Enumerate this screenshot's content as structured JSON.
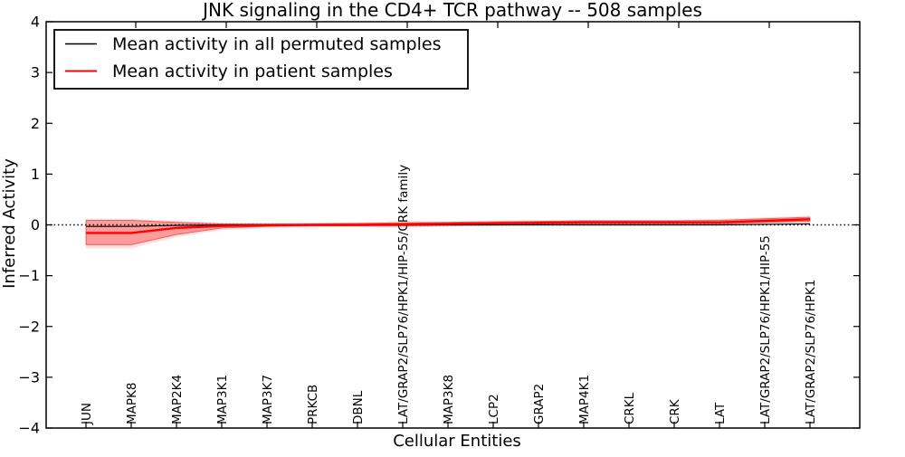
{
  "chart_data": {
    "type": "line",
    "title": "JNK signaling in the CD4+ TCR pathway -- 508 samples",
    "xlabel": "Cellular Entities",
    "ylabel": "Inferred Activity",
    "ylim": [
      -4,
      4
    ],
    "yticks": [
      -4,
      -3,
      -2,
      -1,
      0,
      1,
      2,
      3,
      4
    ],
    "ytick_labels": [
      "−4",
      "−3",
      "−2",
      "−1",
      "0",
      "1",
      "2",
      "3",
      "4"
    ],
    "grid": false,
    "zero_reference_line": {
      "y": 0,
      "style": "dotted",
      "color": "#000000"
    },
    "legend": {
      "position": "upper left",
      "entries": [
        {
          "label": "Mean activity in all permuted samples",
          "color": "#000000"
        },
        {
          "label": "Mean activity in patient samples",
          "color": "#ff0000"
        }
      ]
    },
    "categories": [
      "JUN",
      "MAPK8",
      "MAP2K4",
      "MAP3K1",
      "MAP3K7",
      "PRKCB",
      "DBNL",
      "LAT/GRAP2/SLP76/HPK1/HIP-55/CRK family",
      "MAP3K8",
      "LCP2",
      "GRAP2",
      "MAP4K1",
      "CRKL",
      "CRK",
      "LAT",
      "LAT/GRAP2/SLP76/HPK1/HIP-55",
      "LAT/GRAP2/SLP76/HPK1"
    ],
    "series": [
      {
        "name": "Mean activity in all permuted samples",
        "color": "#000000",
        "values": [
          -0.03,
          -0.03,
          -0.01,
          0.0,
          0.0,
          0.0,
          0.0,
          0.0,
          0.0,
          0.0,
          0.0,
          0.0,
          0.0,
          0.0,
          0.0,
          0.01,
          0.02
        ]
      },
      {
        "name": "Mean activity in patient samples",
        "color": "#ff0000",
        "values": [
          -0.16,
          -0.16,
          -0.06,
          -0.02,
          -0.01,
          0.0,
          0.0,
          0.01,
          0.02,
          0.03,
          0.04,
          0.05,
          0.05,
          0.05,
          0.05,
          0.08,
          0.11
        ]
      }
    ],
    "patient_band": {
      "fill": "#ff0000",
      "alpha": 0.3,
      "low": [
        -0.39,
        -0.39,
        -0.19,
        -0.06,
        -0.03,
        -0.02,
        -0.02,
        -0.02,
        -0.01,
        0.0,
        0.01,
        0.02,
        0.02,
        0.02,
        0.02,
        0.05,
        0.07
      ],
      "high": [
        0.09,
        0.09,
        0.05,
        0.02,
        0.02,
        0.02,
        0.03,
        0.04,
        0.05,
        0.06,
        0.07,
        0.08,
        0.08,
        0.08,
        0.09,
        0.12,
        0.15
      ]
    },
    "patient_band_outer": {
      "fill": "#ff0000",
      "alpha": 0.13,
      "low": [
        -0.46,
        -0.46,
        -0.24,
        -0.1,
        -0.06,
        -0.05,
        -0.04,
        -0.06,
        -0.03,
        -0.02,
        -0.01,
        0.0,
        0.0,
        0.0,
        0.0,
        0.02,
        0.04
      ],
      "high": [
        0.12,
        0.12,
        0.08,
        0.04,
        0.03,
        0.04,
        0.05,
        0.08,
        0.07,
        0.08,
        0.09,
        0.1,
        0.1,
        0.1,
        0.12,
        0.15,
        0.18
      ]
    }
  }
}
